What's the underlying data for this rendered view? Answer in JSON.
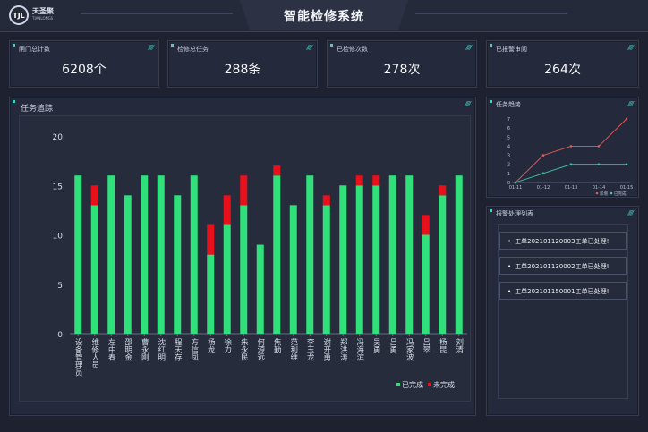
{
  "header": {
    "title": "智能检修系统",
    "logo_mark": "TJL",
    "logo_cn": "天圣聚",
    "logo_en": "TIANLONGS"
  },
  "stats": [
    {
      "label": "闸门总计数",
      "value": "6208个"
    },
    {
      "label": "检修总任务",
      "value": "288条"
    },
    {
      "label": "已检修次数",
      "value": "278次"
    },
    {
      "label": "已报警审阅",
      "value": "264次"
    }
  ],
  "main_chart": {
    "title": "任务追踪"
  },
  "trend_panel": {
    "title": "任务趋势"
  },
  "alert_panel": {
    "title": "报警处理列表",
    "items": [
      "工单202101120003工单已处理!",
      "工单202101130002工单已处理!",
      "工单202101150001工单已处理!"
    ]
  },
  "colors": {
    "completed": "#2fe07b",
    "incomplete": "#e8101a",
    "accent": "#3fd3c8"
  },
  "chart_data": [
    {
      "type": "bar",
      "title": "",
      "categories": [
        "设备管理员",
        "维修人员",
        "左中春",
        "邵明金",
        "曹永刚",
        "沈红明",
        "程天存",
        "方信凤",
        "杨龙",
        "徐力",
        "朱永民",
        "何源远",
        "焦勤",
        "范利维",
        "李玉龙",
        "谢开勇",
        "郑洪涛",
        "冯海滨",
        "吴勇",
        "吕勇",
        "冯家波",
        "吕翠",
        "杨昆",
        "刘清"
      ],
      "series": [
        {
          "name": "已完成",
          "values": [
            16,
            13,
            16,
            14,
            16,
            16,
            14,
            16,
            8,
            11,
            13,
            9,
            16,
            13,
            16,
            13,
            15,
            15,
            15,
            16,
            16,
            10,
            14,
            16
          ]
        },
        {
          "name": "未完成",
          "values": [
            0,
            2,
            0,
            0,
            0,
            0,
            0,
            0,
            3,
            3,
            3,
            0,
            1,
            0,
            0,
            1,
            0,
            1,
            1,
            0,
            0,
            2,
            1,
            0
          ]
        }
      ],
      "ylim": [
        0,
        20
      ],
      "yticks": [
        0,
        5,
        10,
        15,
        20
      ],
      "stacked": true,
      "legend": "bottom-right"
    },
    {
      "type": "line",
      "title": "",
      "categories": [
        "01-11",
        "01-12",
        "01-13",
        "01-14",
        "01-15"
      ],
      "series": [
        {
          "name": "新增",
          "values": [
            0,
            3,
            4,
            4,
            7
          ]
        },
        {
          "name": "已完成",
          "values": [
            0,
            1,
            2,
            2,
            2
          ]
        }
      ],
      "ylim": [
        0,
        7
      ],
      "yticks": [
        0,
        1,
        2,
        3,
        4,
        5,
        6,
        7
      ],
      "legend": "bottom-right"
    }
  ]
}
